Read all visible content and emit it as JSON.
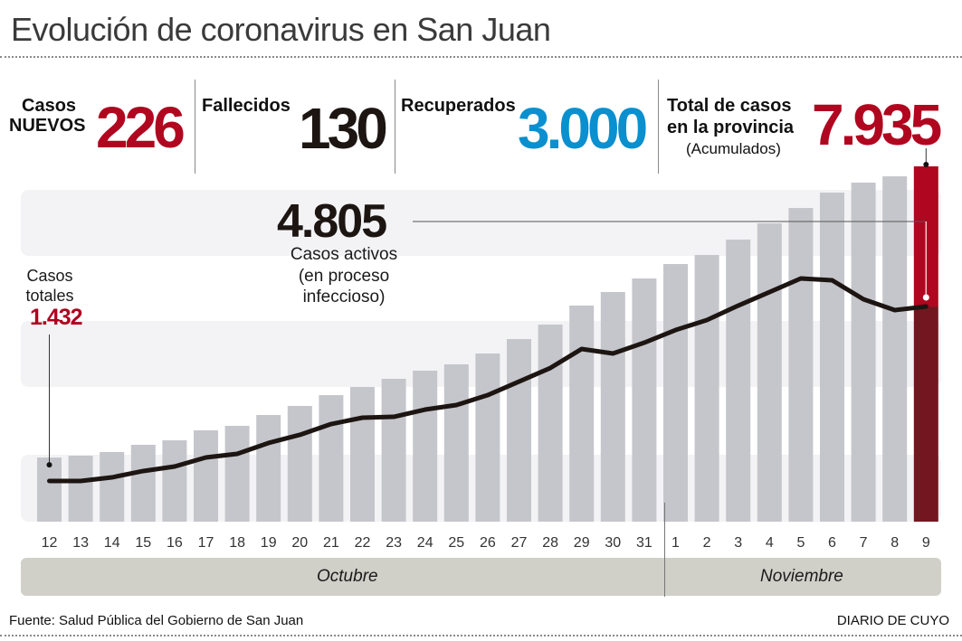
{
  "title": "Evolución de coronavirus en San Juan",
  "stats": {
    "nuevos": {
      "label_line1": "Casos",
      "label_line2": "NUEVOS",
      "value": "226",
      "color": "#b0061f"
    },
    "fallecidos": {
      "label": "Fallecidos",
      "value": "130",
      "color": "#1c1512"
    },
    "recuperados": {
      "label": "Recuperados",
      "value": "3.000",
      "color": "#0a8fcf"
    },
    "total": {
      "label_line1": "Total de casos",
      "label_line2": "en la provincia",
      "sub": "(Acumulados)",
      "value": "7.935",
      "color": "#b0061f"
    }
  },
  "annotations": {
    "activos_value": "4.805",
    "activos_line1": "Casos activos",
    "activos_line2": "(en proceso",
    "activos_line3": "infeccioso)",
    "totales_line1": "Casos",
    "totales_line2": "totales",
    "totales_value": "1.432"
  },
  "months": {
    "october": "Octubre",
    "november": "Noviembre"
  },
  "footer": {
    "source": "Fuente: Salud Pública del Gobierno de San Juan",
    "brand": "DIARIO DE CUYO"
  },
  "colors": {
    "bar": "#c5c6cb",
    "bar_highlight_top": "#b0061f",
    "bar_highlight_bottom": "#731620",
    "line": "#1c1512",
    "band": "#f3f3f5"
  },
  "chart_data": {
    "type": "bar",
    "title": "Evolución de coronavirus en San Juan",
    "xlabel": "",
    "ylabel": "",
    "categories": [
      "12",
      "13",
      "14",
      "15",
      "16",
      "17",
      "18",
      "19",
      "20",
      "21",
      "22",
      "23",
      "24",
      "25",
      "26",
      "27",
      "28",
      "29",
      "30",
      "31",
      "1",
      "2",
      "3",
      "4",
      "5",
      "6",
      "7",
      "8",
      "9"
    ],
    "month_groups": [
      {
        "label": "Octubre",
        "from": "12",
        "to": "31"
      },
      {
        "label": "Noviembre",
        "from": "1",
        "to": "9"
      }
    ],
    "ylim": [
      0,
      8000
    ],
    "grid": false,
    "series": [
      {
        "name": "Casos totales (acumulados)",
        "type": "bar",
        "values": [
          1432,
          1474,
          1555,
          1716,
          1817,
          2039,
          2140,
          2382,
          2584,
          2826,
          3008,
          3190,
          3372,
          3513,
          3755,
          4078,
          4401,
          4826,
          5129,
          5431,
          5754,
          5956,
          6299,
          6662,
          7005,
          7349,
          7571,
          7712,
          7935
        ]
      },
      {
        "name": "Casos activos",
        "type": "line",
        "values": [
          909,
          909,
          989,
          1131,
          1232,
          1434,
          1514,
          1757,
          1939,
          2180,
          2322,
          2342,
          2503,
          2604,
          2826,
          3129,
          3432,
          3856,
          3755,
          3997,
          4280,
          4502,
          4825,
          5128,
          5431,
          5390,
          4967,
          4725,
          4805
        ]
      }
    ],
    "labels": [
      {
        "text": "1.432",
        "target": "12",
        "series": "Casos totales (acumulados)"
      },
      {
        "text": "4.805",
        "target": "9",
        "series": "Casos activos"
      },
      {
        "text": "7.935",
        "target": "9",
        "series": "Casos totales (acumulados)"
      }
    ]
  }
}
